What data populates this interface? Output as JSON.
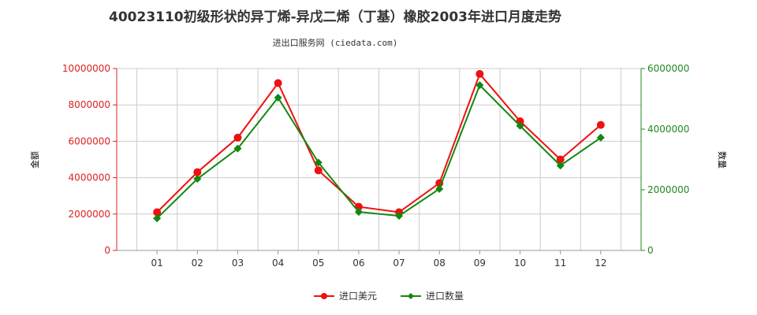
{
  "chart_data": {
    "type": "line",
    "title": "40023110初级形状的异丁烯-异戊二烯（丁基）橡胶2003年进口月度走势",
    "subtitle": "进出口服务网 (ciedata.com)",
    "categories": [
      "01",
      "02",
      "03",
      "04",
      "05",
      "06",
      "07",
      "08",
      "09",
      "10",
      "11",
      "12"
    ],
    "y_left": {
      "label": "金额",
      "ylim": [
        0,
        10000000
      ],
      "ticks": [
        "0",
        "2000000",
        "4000000",
        "6000000",
        "8000000",
        "10000000"
      ],
      "color": "#dd2222"
    },
    "y_right": {
      "label": "数量",
      "ylim": [
        0,
        6000000
      ],
      "ticks": [
        "0",
        "2000000",
        "4000000",
        "6000000"
      ],
      "color": "#228822"
    },
    "series": [
      {
        "name": "进口美元",
        "axis": "left",
        "color": "#ee1111",
        "values": [
          2100000,
          4300000,
          6200000,
          9200000,
          4400000,
          2400000,
          2100000,
          3700000,
          9700000,
          7100000,
          5000000,
          6900000
        ]
      },
      {
        "name": "进口数量",
        "axis": "right",
        "color": "#118811",
        "values": [
          1060000,
          2360000,
          3360000,
          5040000,
          2900000,
          1270000,
          1140000,
          2030000,
          5450000,
          4110000,
          2800000,
          3720000
        ]
      }
    ],
    "grid": true,
    "legend": "bottom-center"
  }
}
